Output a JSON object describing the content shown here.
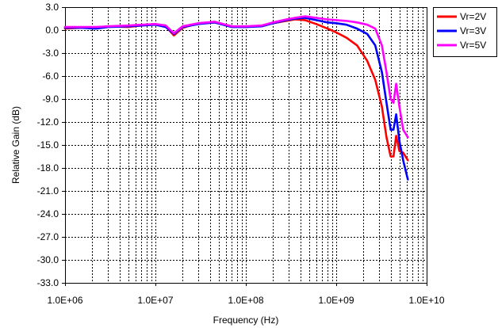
{
  "chart_data": {
    "type": "line",
    "title": "",
    "xlabel": "Frequency (Hz)",
    "ylabel": "Relative Gain (dB)",
    "x_scale": "log",
    "xlim": [
      1000000,
      10000000000
    ],
    "ylim": [
      -33,
      3
    ],
    "x_ticks": [
      1000000,
      10000000,
      100000000,
      1000000000,
      10000000000
    ],
    "x_tick_labels": [
      "1.0E+06",
      "1.0E+07",
      "1.0E+08",
      "1.0E+09",
      "1.0E+10"
    ],
    "y_ticks": [
      3,
      0,
      -3,
      -6,
      -9,
      -12,
      -15,
      -18,
      -21,
      -24,
      -27,
      -30,
      -33
    ],
    "y_tick_labels": [
      "3.0",
      "0.0",
      "-3.0",
      "-6.0",
      "-9.0",
      "-12.0",
      "-15.0",
      "-18.0",
      "-21.0",
      "-24.0",
      "-27.0",
      "-30.0",
      "-33.0"
    ],
    "grid": true,
    "legend_position": "top-right",
    "series": [
      {
        "name": "Vr=2V",
        "color": "#ff0000",
        "x": [
          1000000,
          1500000,
          2200000,
          3000000,
          5000000,
          7000000,
          10000000,
          13000000,
          16000000,
          20000000,
          30000000,
          45000000,
          70000000,
          100000000,
          150000000,
          200000000,
          280000000,
          350000000,
          450000000,
          600000000,
          800000000,
          1000000000,
          1300000000,
          1700000000,
          2200000000,
          2700000000,
          3200000000,
          3600000000,
          4000000000,
          4300000000,
          4600000000,
          5000000000,
          5500000000,
          6200000000
        ],
        "y": [
          0.2,
          0.3,
          0.3,
          0.5,
          0.4,
          0.6,
          0.8,
          0.5,
          -0.7,
          0.3,
          0.9,
          1.0,
          0.5,
          0.4,
          0.6,
          0.9,
          1.2,
          1.4,
          1.3,
          0.8,
          0.2,
          -0.3,
          -1.0,
          -2.0,
          -4.0,
          -6.5,
          -10.0,
          -14.0,
          -16.5,
          -16.5,
          -13.8,
          -15.8,
          -16.0,
          -17.0
        ]
      },
      {
        "name": "Vr=3V",
        "color": "#0000ff",
        "x": [
          1000000,
          1500000,
          2200000,
          3000000,
          5000000,
          7000000,
          10000000,
          13000000,
          16000000,
          20000000,
          30000000,
          45000000,
          70000000,
          100000000,
          150000000,
          200000000,
          280000000,
          350000000,
          450000000,
          600000000,
          800000000,
          1000000000,
          1300000000,
          1700000000,
          2200000000,
          2700000000,
          3200000000,
          3600000000,
          4000000000,
          4300000000,
          4600000000,
          5000000000,
          5500000000,
          6200000000
        ],
        "y": [
          0.3,
          0.3,
          0.2,
          0.4,
          0.5,
          0.6,
          0.7,
          0.4,
          -0.5,
          0.4,
          0.8,
          1.0,
          0.4,
          0.4,
          0.5,
          0.9,
          1.3,
          1.5,
          1.6,
          1.3,
          1.0,
          0.9,
          0.7,
          0.2,
          -0.5,
          -2.0,
          -5.5,
          -9.5,
          -13.0,
          -13.0,
          -11.0,
          -14.5,
          -17.0,
          -19.5
        ]
      },
      {
        "name": "Vr=5V",
        "color": "#ff00ff",
        "x": [
          1000000,
          1500000,
          2200000,
          3000000,
          5000000,
          7000000,
          10000000,
          13000000,
          16000000,
          20000000,
          30000000,
          45000000,
          70000000,
          100000000,
          150000000,
          200000000,
          280000000,
          350000000,
          450000000,
          600000000,
          800000000,
          1000000000,
          1300000000,
          1700000000,
          2200000000,
          2700000000,
          3200000000,
          3600000000,
          4000000000,
          4300000000,
          4600000000,
          5000000000,
          5500000000,
          6200000000
        ],
        "y": [
          0.4,
          0.4,
          0.4,
          0.5,
          0.6,
          0.7,
          0.8,
          0.6,
          -0.4,
          0.5,
          0.9,
          1.1,
          0.5,
          0.5,
          0.6,
          1.0,
          1.4,
          1.6,
          1.8,
          1.6,
          1.4,
          1.3,
          1.2,
          1.0,
          0.7,
          0.2,
          -2.0,
          -5.5,
          -9.0,
          -9.5,
          -7.0,
          -10.0,
          -13.0,
          -14.0
        ]
      }
    ]
  }
}
